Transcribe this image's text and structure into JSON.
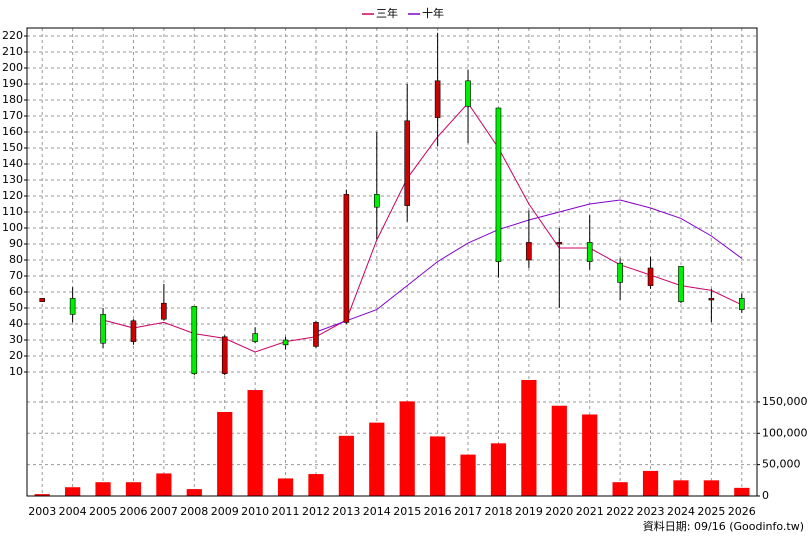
{
  "chart_data": {
    "type": "candlestick",
    "categories": [
      "2003",
      "2004",
      "2005",
      "2006",
      "2007",
      "2008",
      "2009",
      "2010",
      "2011",
      "2012",
      "2013",
      "2014",
      "2015",
      "2016",
      "2017",
      "2018",
      "2019",
      "2020",
      "2021",
      "2022",
      "2023",
      "2024",
      "2025",
      "2026"
    ],
    "open": [
      54,
      56,
      46,
      29,
      43,
      51,
      9,
      34,
      30,
      26,
      41,
      121,
      114,
      169,
      192,
      175,
      80,
      90,
      91,
      78,
      64,
      76,
      55,
      56
    ],
    "high": [
      56,
      63,
      50,
      43,
      65,
      51,
      33,
      38,
      32,
      42,
      124,
      160,
      190,
      222,
      199,
      175,
      111,
      100,
      108,
      81,
      82,
      76,
      62,
      59
    ],
    "low": [
      54,
      41,
      25,
      27,
      42,
      8,
      8,
      28,
      24,
      25,
      40,
      93,
      104,
      151,
      153,
      69,
      75,
      50,
      74,
      55,
      62,
      53,
      41,
      47
    ],
    "close": [
      56,
      46,
      28,
      42,
      53,
      9,
      32,
      29,
      27,
      41,
      121,
      113,
      167,
      192,
      176,
      79,
      91,
      91,
      79,
      66,
      75,
      54,
      56,
      49
    ],
    "up_color": "#cc0000",
    "down_color": "#00ee00",
    "ylim": [
      5,
      225
    ],
    "yticks": [
      10,
      20,
      30,
      40,
      50,
      60,
      70,
      80,
      90,
      100,
      110,
      120,
      130,
      140,
      150,
      160,
      170,
      180,
      190,
      200,
      210,
      220
    ],
    "grid": true,
    "series": [
      {
        "name": "三年",
        "color": "#cc0066",
        "values": [
          null,
          null,
          42.5,
          37.5,
          41,
          34,
          31,
          22.5,
          29,
          32,
          42.5,
          92.5,
          131,
          157,
          178,
          150,
          115,
          87.5,
          87.5,
          77,
          70.6,
          64,
          61,
          52
        ]
      },
      {
        "name": "十年",
        "color": "#8000cc",
        "values": [
          null,
          null,
          null,
          null,
          null,
          null,
          null,
          null,
          null,
          35,
          42,
          49,
          64,
          79,
          90.6,
          99,
          105,
          110,
          115,
          117.5,
          112.5,
          106,
          95,
          81
        ]
      }
    ],
    "volume": {
      "color": "#ff0000",
      "values": [
        3000,
        14000,
        22000,
        22000,
        36000,
        11000,
        134000,
        169000,
        28000,
        35000,
        96000,
        117000,
        151000,
        95000,
        66000,
        84000,
        185000,
        144000,
        130000,
        22000,
        40000,
        25000,
        25000,
        13000
      ],
      "ylim": [
        0,
        185000
      ],
      "yticks": [
        0,
        {
          "value": 50000,
          "label": "50,000"
        },
        {
          "value": 100000,
          "label": "100,000"
        },
        {
          "value": 150000,
          "label": "150,000"
        }
      ]
    },
    "footnote": "資料日期: 09/16 (Goodinfo.tw)"
  }
}
